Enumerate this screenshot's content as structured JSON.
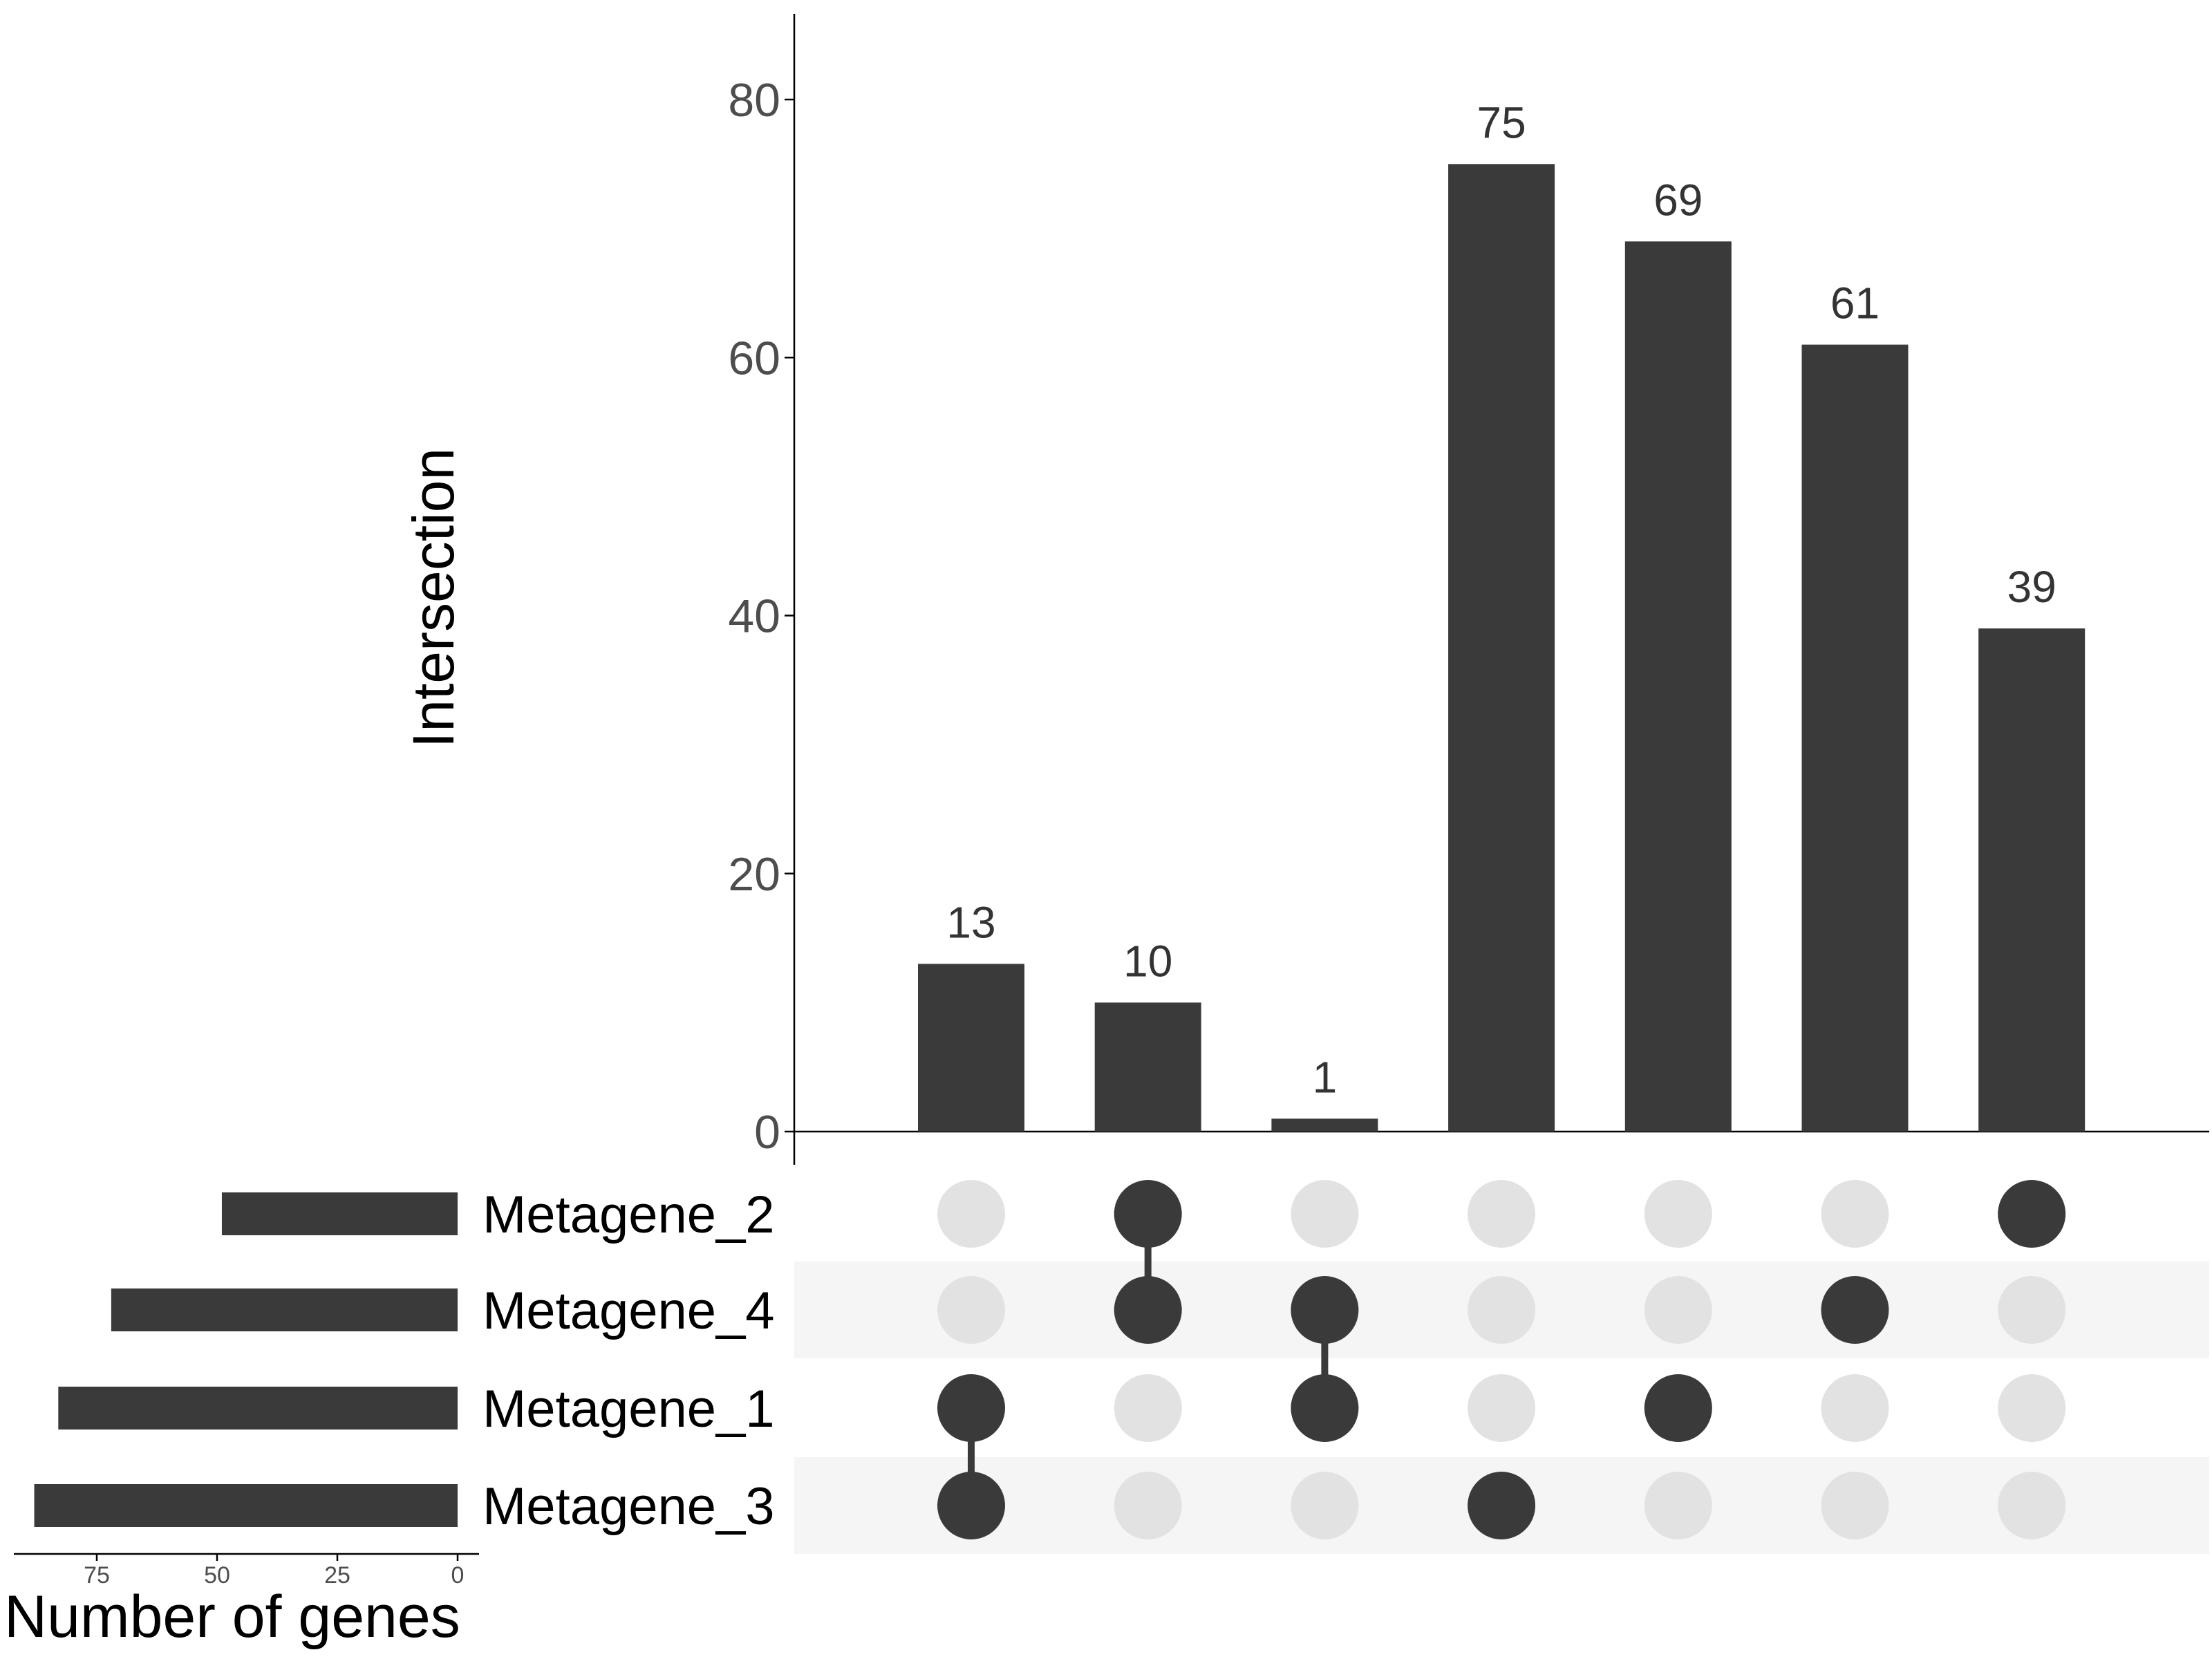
{
  "chart_data": {
    "type": "upset",
    "ylabel": "Intersection",
    "ylim": [
      0,
      86
    ],
    "yticks": [
      0,
      20,
      40,
      60,
      80
    ],
    "sets": [
      "Metagene_2",
      "Metagene_4",
      "Metagene_1",
      "Metagene_3"
    ],
    "set_sizes": [
      49,
      72,
      83,
      88
    ],
    "set_size_label": "Number of genes",
    "set_size_ticks": [
      75,
      50,
      25,
      0
    ],
    "set_size_lim": [
      0,
      92
    ],
    "intersections": [
      {
        "sets": [
          "Metagene_1",
          "Metagene_3"
        ],
        "value": 13
      },
      {
        "sets": [
          "Metagene_2",
          "Metagene_4"
        ],
        "value": 10
      },
      {
        "sets": [
          "Metagene_4",
          "Metagene_1"
        ],
        "value": 1
      },
      {
        "sets": [
          "Metagene_3"
        ],
        "value": 75
      },
      {
        "sets": [
          "Metagene_1"
        ],
        "value": 69
      },
      {
        "sets": [
          "Metagene_4"
        ],
        "value": 61
      },
      {
        "sets": [
          "Metagene_2"
        ],
        "value": 39
      }
    ],
    "colors": {
      "bar": "#3a3a3a",
      "dot_off": "#e2e2e2",
      "stripe": "#f5f5f5",
      "axis": "#000000",
      "tick_text": "#4d4d4d"
    }
  }
}
